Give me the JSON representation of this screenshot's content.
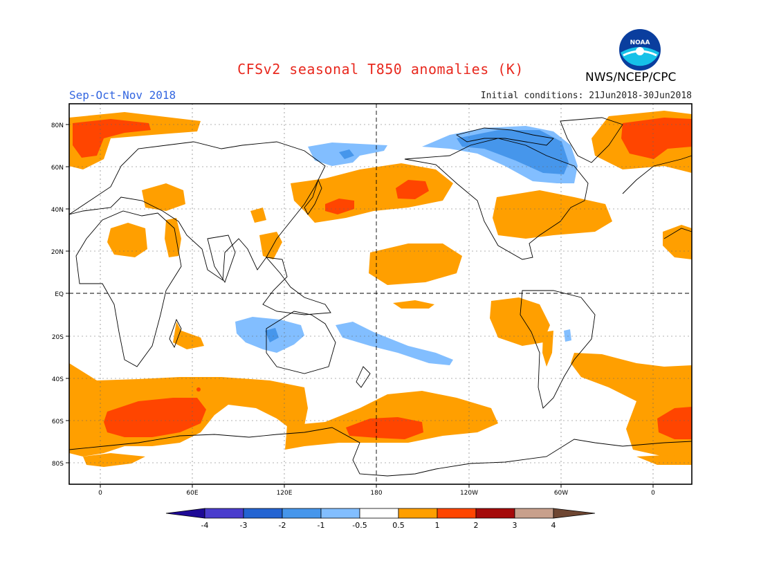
{
  "title": "CFSv2 seasonal T850 anomalies (K)",
  "season": "Sep-Oct-Nov 2018",
  "initial_conditions": "Initial conditions: 21Jun2018-30Jun2018",
  "agency": "NWS/NCEP/CPC",
  "logo_text": "NOAA",
  "lat_labels": [
    "80N",
    "60N",
    "40N",
    "20N",
    "EQ",
    "20S",
    "40S",
    "60S",
    "80S"
  ],
  "lon_labels": [
    "0",
    "60E",
    "120E",
    "180",
    "120W",
    "60W",
    "0"
  ],
  "colorbar": {
    "labels": [
      "-4",
      "-3",
      "-2",
      "-1",
      "-0.5",
      "0.5",
      "1",
      "2",
      "3",
      "4"
    ],
    "colors": [
      "#1e0a96",
      "#4a3ccd",
      "#2464d2",
      "#4696eb",
      "#82beff",
      "#ffffff",
      "#ff9f00",
      "#ff4500",
      "#a50a0a",
      "#c8a08c",
      "#6e4632"
    ]
  }
}
